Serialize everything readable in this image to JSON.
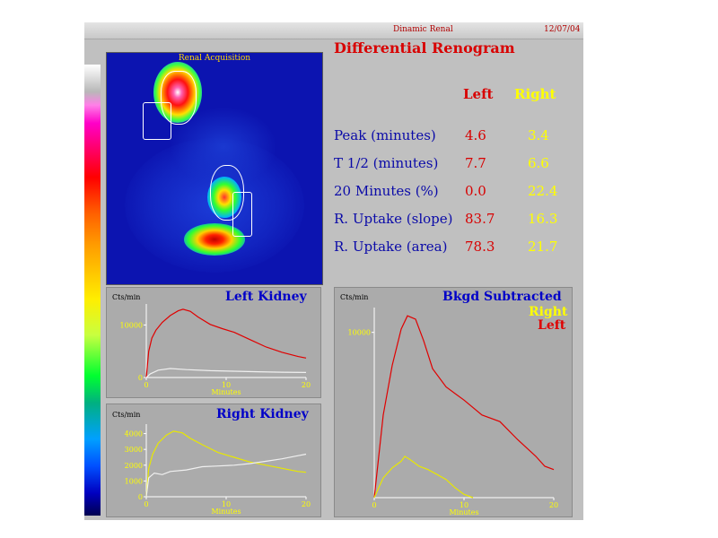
{
  "header": {
    "study_title": "Dinamic Renal",
    "date": "12/07/04"
  },
  "scan": {
    "label": "Renal Acquisition"
  },
  "results": {
    "title": "Differential Renogram",
    "columns": {
      "left": "Left",
      "right": "Right"
    },
    "rows": [
      {
        "label": "Peak (minutes)",
        "left": "4.6",
        "right": "3.4"
      },
      {
        "label": "T 1/2 (minutes)",
        "left": "7.7",
        "right": "6.6"
      },
      {
        "label": "20 Minutes (%)",
        "left": "0.0",
        "right": "22.4"
      },
      {
        "label": "R. Uptake (slope)",
        "left": "83.7",
        "right": "16.3"
      },
      {
        "label": "R. Uptake (area)",
        "left": "78.3",
        "right": "21.7"
      }
    ]
  },
  "colors": {
    "left_curve": "#e00000",
    "right_curve": "#e8e800",
    "bkgd_curve": "#f0f0f0",
    "title_blue": "#0000c8"
  },
  "chart_data": [
    {
      "type": "line",
      "title": "Left Kidney",
      "ylabel": "Cts/min",
      "xlabel": "Minutes",
      "xlim": [
        0,
        20
      ],
      "ylim": [
        0,
        14000
      ],
      "xticks": [
        "0",
        "10",
        "20"
      ],
      "yticks": [
        "0",
        "10000"
      ],
      "ytick_values": [
        0,
        10000
      ],
      "series": [
        {
          "color": "#e00000",
          "x": [
            0,
            0.3,
            0.7,
            1.2,
            2,
            3,
            4,
            4.6,
            5.5,
            6.5,
            8,
            9.5,
            11,
            13,
            15,
            17,
            19,
            20
          ],
          "y": [
            0,
            5000,
            7500,
            9000,
            10500,
            11800,
            12700,
            13000,
            12600,
            11500,
            10100,
            9300,
            8600,
            7200,
            5800,
            4800,
            4000,
            3700
          ]
        },
        {
          "color": "#f0f0f0",
          "x": [
            0,
            0.5,
            1.5,
            3,
            5,
            8,
            11,
            14,
            17,
            20
          ],
          "y": [
            0,
            700,
            1400,
            1700,
            1500,
            1300,
            1200,
            1100,
            1000,
            950
          ]
        }
      ]
    },
    {
      "type": "line",
      "title": "Right Kidney",
      "ylabel": "Cts/min",
      "xlabel": "Minutes",
      "xlim": [
        0,
        20
      ],
      "ylim": [
        0,
        4600
      ],
      "xticks": [
        "0",
        "10",
        "20"
      ],
      "yticks": [
        "0",
        "1000",
        "2000",
        "3000",
        "4000"
      ],
      "ytick_values": [
        0,
        1000,
        2000,
        3000,
        4000
      ],
      "series": [
        {
          "color": "#e8e800",
          "x": [
            0,
            0.3,
            0.8,
            1.5,
            2.5,
            3.4,
            4.5,
            5.5,
            7,
            9,
            11,
            13,
            15,
            17,
            19,
            20
          ],
          "y": [
            0,
            1800,
            2700,
            3400,
            3900,
            4150,
            4050,
            3700,
            3300,
            2800,
            2500,
            2200,
            2000,
            1800,
            1600,
            1550
          ]
        },
        {
          "color": "#f0f0f0",
          "x": [
            0,
            0.3,
            1,
            2,
            3,
            5,
            7,
            9,
            11,
            13,
            15,
            17,
            19,
            20
          ],
          "y": [
            0,
            1200,
            1500,
            1400,
            1600,
            1700,
            1900,
            1950,
            2000,
            2100,
            2250,
            2400,
            2600,
            2700
          ]
        }
      ]
    },
    {
      "type": "line",
      "title": "Bkgd Subtracted",
      "ylabel": "Cts/min",
      "xlabel": "Minutes",
      "xlim": [
        0,
        20
      ],
      "ylim": [
        0,
        11500
      ],
      "xticks": [
        "0",
        "10",
        "20"
      ],
      "yticks": [
        "10000"
      ],
      "ytick_values": [
        10000
      ],
      "legend": [
        "Right",
        "Left"
      ],
      "legend_position": "top-right",
      "series": [
        {
          "name": "Left",
          "color": "#e00000",
          "x": [
            0,
            0.5,
            1,
            2,
            3,
            3.7,
            4.6,
            5.5,
            6.5,
            8,
            10,
            12,
            14,
            16,
            18,
            19,
            20
          ],
          "y": [
            0,
            2500,
            5000,
            8000,
            10200,
            11000,
            10800,
            9500,
            7800,
            6700,
            5900,
            5000,
            4600,
            3500,
            2500,
            1900,
            1700
          ]
        },
        {
          "name": "Right",
          "color": "#e8e800",
          "x": [
            0,
            0.5,
            1,
            2,
            3,
            3.4,
            4,
            5,
            6,
            7,
            8,
            9,
            10,
            11
          ],
          "y": [
            0,
            600,
            1200,
            1800,
            2200,
            2500,
            2300,
            1900,
            1700,
            1400,
            1100,
            600,
            200,
            0
          ]
        }
      ]
    }
  ]
}
